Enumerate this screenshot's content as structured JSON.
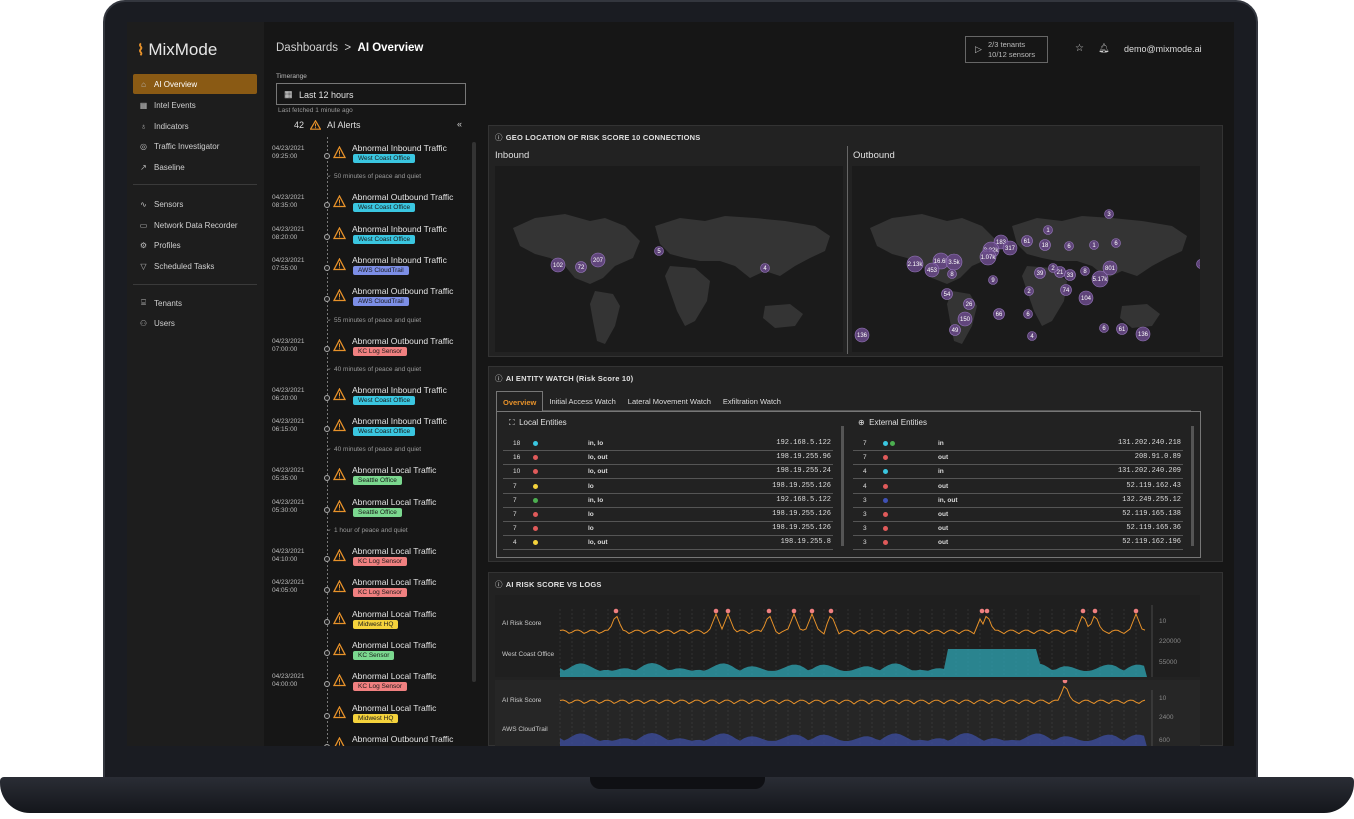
{
  "app": {
    "logo": "MixMode"
  },
  "sidebar": {
    "items": [
      {
        "label": "AI Overview",
        "icon": "home-icon"
      },
      {
        "label": "Intel Events",
        "icon": "grid-icon"
      },
      {
        "label": "Indicators",
        "icon": "bulb-icon"
      },
      {
        "label": "Traffic Investigator",
        "icon": "radar-icon"
      },
      {
        "label": "Baseline",
        "icon": "trend-icon"
      },
      {
        "label": "Sensors",
        "icon": "pulse-icon"
      },
      {
        "label": "Network Data Recorder",
        "icon": "drive-icon"
      },
      {
        "label": "Profiles",
        "icon": "gear-icon"
      },
      {
        "label": "Scheduled Tasks",
        "icon": "filter-icon"
      },
      {
        "label": "Tenants",
        "icon": "tenants-icon"
      },
      {
        "label": "Users",
        "icon": "users-icon"
      }
    ]
  },
  "header": {
    "breadcrumb_root": "Dashboards",
    "breadcrumb_sep": ">",
    "page_title": "AI Overview",
    "tenants": "2/3 tenants",
    "sensors": "10/12 sensors",
    "user": "demo@mixmode.ai"
  },
  "timerange": {
    "label": "Timerange",
    "value": "Last 12 hours",
    "fetched": "Last fetched 1 minute ago"
  },
  "alerts": {
    "count": "42",
    "title": "AI Alerts",
    "items": [
      {
        "date": "04/23/2021",
        "time": "09:25:00",
        "title": "Abnormal Inbound Traffic",
        "tag": "West Coast Office",
        "tagColor": "#3ac6e0"
      },
      {
        "gap": "50 minutes of peace and quiet"
      },
      {
        "date": "04/23/2021",
        "time": "08:35:00",
        "title": "Abnormal Outbound Traffic",
        "tag": "West Coast Office",
        "tagColor": "#3ac6e0"
      },
      {
        "date": "04/23/2021",
        "time": "08:20:00",
        "title": "Abnormal Inbound Traffic",
        "tag": "West Coast Office",
        "tagColor": "#3ac6e0"
      },
      {
        "date": "04/23/2021",
        "time": "07:55:00",
        "title": "Abnormal Inbound Traffic",
        "tag": "AWS CloudTrail",
        "tagColor": "#7c8ee6"
      },
      {
        "date": "",
        "time": "",
        "title": "Abnormal Outbound Traffic",
        "tag": "AWS CloudTrail",
        "tagColor": "#7c8ee6"
      },
      {
        "gap": "55 minutes of peace and quiet"
      },
      {
        "date": "04/23/2021",
        "time": "07:00:00",
        "title": "Abnormal Outbound Traffic",
        "tag": "KC Log Sensor",
        "tagColor": "#f08080"
      },
      {
        "gap": "40 minutes of peace and quiet"
      },
      {
        "date": "04/23/2021",
        "time": "06:20:00",
        "title": "Abnormal Inbound Traffic",
        "tag": "West Coast Office",
        "tagColor": "#3ac6e0"
      },
      {
        "date": "04/23/2021",
        "time": "06:15:00",
        "title": "Abnormal Inbound Traffic",
        "tag": "West Coast Office",
        "tagColor": "#3ac6e0"
      },
      {
        "gap": "40 minutes of peace and quiet"
      },
      {
        "date": "04/23/2021",
        "time": "05:35:00",
        "title": "Abnormal Local Traffic",
        "tag": "Seattle Office",
        "tagColor": "#7bd88f"
      },
      {
        "date": "04/23/2021",
        "time": "05:30:00",
        "title": "Abnormal Local Traffic",
        "tag": "Seattle Office",
        "tagColor": "#7bd88f"
      },
      {
        "gap": "1 hour of peace and quiet"
      },
      {
        "date": "04/23/2021",
        "time": "04:10:00",
        "title": "Abnormal Local Traffic",
        "tag": "KC Log Sensor",
        "tagColor": "#f08080"
      },
      {
        "date": "04/23/2021",
        "time": "04:05:00",
        "title": "Abnormal Local Traffic",
        "tag": "KC Log Sensor",
        "tagColor": "#f08080"
      },
      {
        "date": "",
        "time": "",
        "title": "Abnormal Local Traffic",
        "tag": "Midwest HQ",
        "tagColor": "#f5d33c"
      },
      {
        "date": "",
        "time": "",
        "title": "Abnormal Local Traffic",
        "tag": "KC Sensor",
        "tagColor": "#7bd88f"
      },
      {
        "date": "04/23/2021",
        "time": "04:00:00",
        "title": "Abnormal Local Traffic",
        "tag": "KC Log Sensor",
        "tagColor": "#f08080"
      },
      {
        "date": "",
        "time": "",
        "title": "Abnormal Local Traffic",
        "tag": "Midwest HQ",
        "tagColor": "#f5d33c"
      },
      {
        "date": "",
        "time": "",
        "title": "Abnormal Outbound Traffic",
        "tag": "",
        "tagColor": ""
      }
    ]
  },
  "geo": {
    "title": "GEO LOCATION OF RISK SCORE 10 CONNECTIONS",
    "inbound_label": "Inbound",
    "outbound_label": "Outbound",
    "inbound_bubbles": [
      "102",
      "72",
      "207",
      "5",
      "4"
    ],
    "outbound_bubbles": [
      "183",
      "3.22k",
      "1.07k",
      "317",
      "61",
      "18",
      "6",
      "2.13k",
      "16.6k",
      "3.5k",
      "453",
      "8",
      "39",
      "21",
      "33",
      "5.17k",
      "801",
      "74",
      "104",
      "54",
      "26",
      "150",
      "66",
      "49",
      "136",
      "61",
      "136",
      "9",
      "2",
      "1",
      "6",
      "3",
      "1",
      "2",
      "8",
      "6",
      "4",
      "6",
      "1"
    ]
  },
  "entity": {
    "title": "AI ENTITY WATCH (Risk Score 10)",
    "tabs": [
      "Overview",
      "Initial Access Watch",
      "Lateral Movement Watch",
      "Exfiltration Watch"
    ],
    "local_title": "Local Entities",
    "external_title": "External Entities",
    "local": [
      {
        "n": "18",
        "c": "#3ac6e0",
        "dir": "in, lo",
        "ip": "192.168.5.122"
      },
      {
        "n": "16",
        "c": "#e05a5a",
        "dir": "lo, out",
        "ip": "198.19.255.96"
      },
      {
        "n": "10",
        "c": "#e05a5a",
        "dir": "lo, out",
        "ip": "198.19.255.24"
      },
      {
        "n": "7",
        "c": "#f5d33c",
        "dir": "lo",
        "ip": "198.19.255.126"
      },
      {
        "n": "7",
        "c": "#4caf50",
        "dir": "in, lo",
        "ip": "192.168.5.122"
      },
      {
        "n": "7",
        "c": "#e05a5a",
        "dir": "lo",
        "ip": "198.19.255.126"
      },
      {
        "n": "7",
        "c": "#e05a5a",
        "dir": "lo",
        "ip": "198.19.255.126"
      },
      {
        "n": "4",
        "c": "#f5d33c",
        "dir": "lo, out",
        "ip": "198.19.255.8"
      }
    ],
    "external": [
      {
        "n": "7",
        "c": "#3ac6e0",
        "c2": "#4caf50",
        "dir": "in",
        "ip": "131.202.240.218"
      },
      {
        "n": "7",
        "c": "#e05a5a",
        "c2": "",
        "dir": "out",
        "ip": "208.91.0.89"
      },
      {
        "n": "4",
        "c": "#3ac6e0",
        "c2": "",
        "dir": "in",
        "ip": "131.202.240.209"
      },
      {
        "n": "4",
        "c": "#e05a5a",
        "c2": "",
        "dir": "out",
        "ip": "52.119.162.43"
      },
      {
        "n": "3",
        "c": "#3f51b5",
        "c2": "",
        "dir": "in, out",
        "ip": "132.249.255.12"
      },
      {
        "n": "3",
        "c": "#e05a5a",
        "c2": "",
        "dir": "out",
        "ip": "52.119.165.138"
      },
      {
        "n": "3",
        "c": "#e05a5a",
        "c2": "",
        "dir": "out",
        "ip": "52.119.165.36"
      },
      {
        "n": "3",
        "c": "#e05a5a",
        "c2": "",
        "dir": "out",
        "ip": "52.119.162.196"
      }
    ]
  },
  "risk": {
    "title": "AI RISK SCORE VS LOGS",
    "row1_score_label": "AI Risk Score",
    "row1_logs_label": "West Coast Office",
    "row1_axis": [
      "10",
      "220000",
      "55000"
    ],
    "row2_score_label": "AI Risk Score",
    "row2_logs_label": "AWS CloudTrail",
    "row2_axis": [
      "10",
      "2400",
      "600"
    ]
  }
}
